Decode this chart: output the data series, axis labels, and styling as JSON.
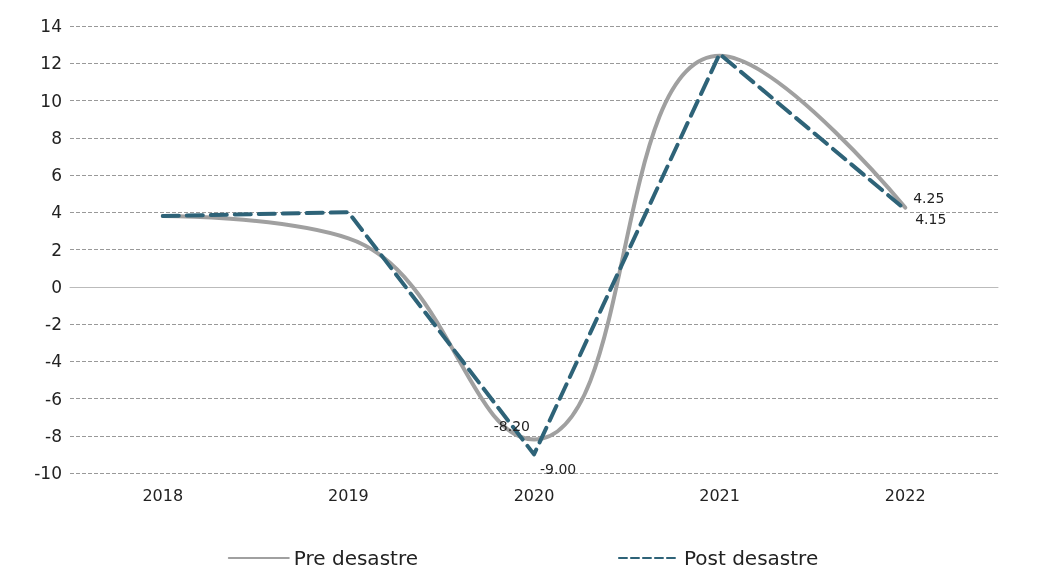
{
  "chart_data": {
    "type": "line",
    "categories": [
      "2018",
      "2019",
      "2020",
      "2021",
      "2022"
    ],
    "series": [
      {
        "name": "Pre desastre",
        "color": "#a0a0a0",
        "line_style": "solid",
        "values": [
          3.8,
          2.6,
          -8.2,
          12.4,
          4.25
        ],
        "value_labels": [
          null,
          null,
          "-8.20",
          null,
          "4.25"
        ]
      },
      {
        "name": "Post desastre",
        "color": "#2e6378",
        "line_style": "dashed",
        "values": [
          3.8,
          4.0,
          -9.0,
          12.5,
          4.15
        ],
        "value_labels": [
          null,
          null,
          "-9.00",
          null,
          "4.15"
        ]
      }
    ],
    "ylim": [
      -10,
      14
    ],
    "yticks": [
      -10,
      -8,
      -6,
      -4,
      -2,
      0,
      2,
      4,
      6,
      8,
      10,
      12,
      14
    ],
    "grid": "y",
    "legend": "bottom",
    "marker": "none"
  }
}
